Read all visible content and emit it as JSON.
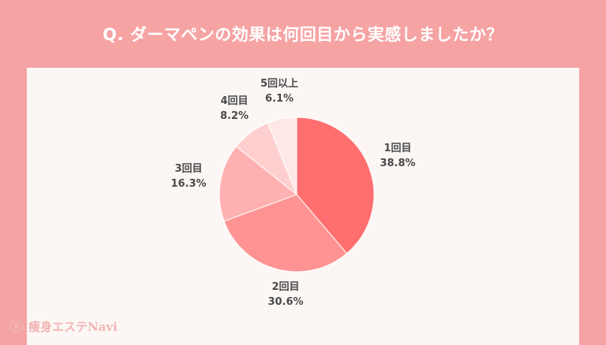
{
  "title": "Q. ダーマペンの効果は何回目から実感しましたか？",
  "brand": "痩身エステNavi",
  "chart_data": {
    "type": "pie",
    "title": "Q. ダーマペンの効果は何回目から実感しましたか？",
    "slices": [
      {
        "label": "1回目",
        "value": 38.8,
        "display": "38.8%",
        "color": "#ff6f6f"
      },
      {
        "label": "2回目",
        "value": 30.6,
        "display": "30.6%",
        "color": "#ff9393"
      },
      {
        "label": "3回目",
        "value": 16.3,
        "display": "16.3%",
        "color": "#ffb0b0"
      },
      {
        "label": "4回目",
        "value": 8.2,
        "display": "8.2%",
        "color": "#ffcfcf"
      },
      {
        "label": "5回以上",
        "value": 6.1,
        "display": "6.1%",
        "color": "#ffe7e7"
      }
    ],
    "start_angle_deg": 0,
    "direction": "clockwise"
  }
}
